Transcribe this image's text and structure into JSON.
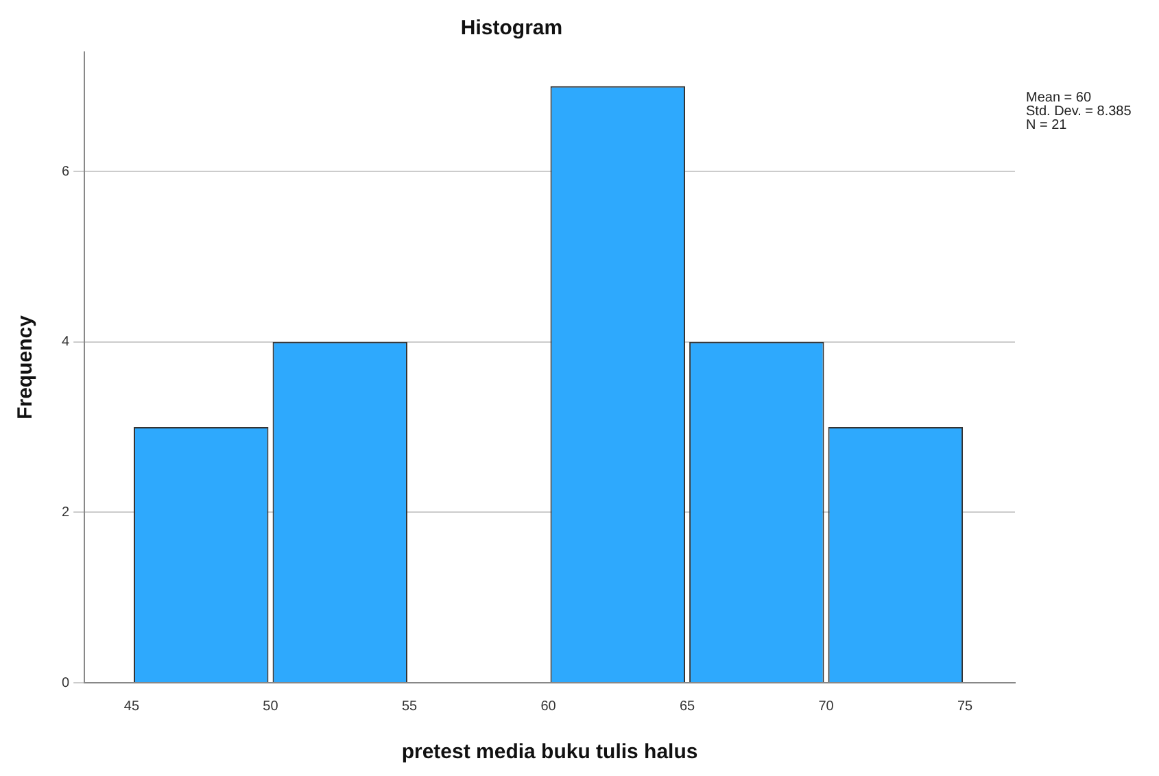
{
  "chart_data": {
    "type": "histogram",
    "title": "Histogram",
    "xlabel": "pretest media buku tulis halus",
    "ylabel": "Frequency",
    "bins": [
      45,
      50,
      55,
      60,
      65,
      70,
      75
    ],
    "values": [
      3,
      4,
      0,
      7,
      4,
      3
    ],
    "color": "#2ea9fd",
    "xlim": [
      43.3,
      76.8
    ],
    "xticks": [
      45,
      50,
      55,
      60,
      65,
      70,
      75
    ],
    "ylim": [
      0,
      7.4
    ],
    "yticks": [
      0,
      2,
      4,
      6
    ],
    "grid": "y",
    "legend": false,
    "annotations": [
      "Mean = 60",
      "Std. Dev. = 8.385",
      "N = 21"
    ]
  }
}
